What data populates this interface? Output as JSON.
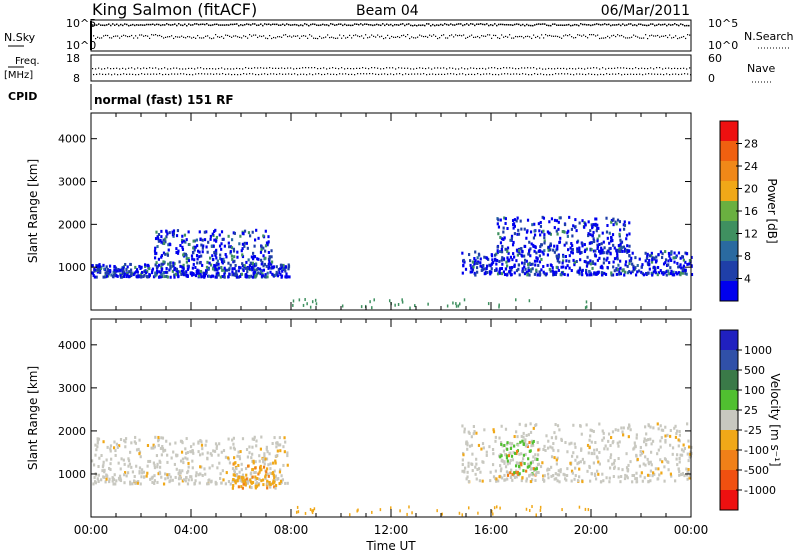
{
  "header": {
    "station": "King Salmon (fitACF)",
    "beam": "Beam 04",
    "date": "06/Mar/2011"
  },
  "top_panels": {
    "nsky_label": "N.Sky",
    "nsky_ticks": [
      "10^5",
      "10^0"
    ],
    "nsearch_label": "N.Search",
    "nsearch_ticks": [
      "10^5",
      "10^0"
    ],
    "freq_label_1": "Freq.",
    "freq_label_2": "[MHz]",
    "freq_ticks": [
      "18",
      "8"
    ],
    "nave_label": "Nave",
    "nave_ticks": [
      "60",
      "0"
    ],
    "cpid_label": "CPID",
    "cpid_text": "normal (fast) 151 RF"
  },
  "colors": {
    "power_scale": [
      "#0000ee",
      "#1f3fa8",
      "#2a6aa0",
      "#3f9060",
      "#6ab040",
      "#f0a818",
      "#f08818",
      "#f06010",
      "#ee1010"
    ],
    "velocity_scale": [
      "#2020c0",
      "#3050a8",
      "#3a7a48",
      "#50c030",
      "#c8c8c0",
      "#f0a818",
      "#f08018",
      "#f05010",
      "#ee1010"
    ]
  },
  "chart_data": [
    {
      "type": "heatmap",
      "name": "power",
      "ylabel": "Slant Range [km]",
      "ylim": [
        0,
        4600
      ],
      "yticks": [
        1000,
        2000,
        3000,
        4000
      ],
      "xlim": [
        0,
        24
      ],
      "colorbar_label": "Power [dB]",
      "colorbar_ticks": [
        "4",
        "8",
        "12",
        "16",
        "20",
        "24",
        "28"
      ],
      "features": [
        {
          "t_start": 0.0,
          "t_end": 7.9,
          "range_km": [
            800,
            1100
          ],
          "level": "low"
        },
        {
          "t_start": 2.5,
          "t_end": 7.2,
          "range_km": [
            1100,
            1900
          ],
          "level": "low"
        },
        {
          "t_start": 14.8,
          "t_end": 24.0,
          "range_km": [
            850,
            1400
          ],
          "level": "low"
        },
        {
          "t_start": 16.2,
          "t_end": 21.5,
          "range_km": [
            1400,
            2200
          ],
          "level": "low"
        }
      ]
    },
    {
      "type": "heatmap",
      "name": "velocity",
      "ylabel": "Slant Range [km]",
      "ylim": [
        0,
        4600
      ],
      "yticks": [
        1000,
        2000,
        3000,
        4000
      ],
      "xlim": [
        0,
        24
      ],
      "xticks": [
        "00:00",
        "04:00",
        "08:00",
        "12:00",
        "16:00",
        "20:00",
        "00:00"
      ],
      "xlabel": "Time UT",
      "colorbar_label": "Velocity [m s⁻¹]",
      "colorbar_ticks": [
        "1000",
        "500",
        "100",
        "25",
        "-25",
        "-100",
        "-500",
        "-1000"
      ],
      "features": [
        {
          "t_start": 0.0,
          "t_end": 7.9,
          "range_km": [
            800,
            1900
          ],
          "level": "ground"
        },
        {
          "t_start": 5.6,
          "t_end": 7.4,
          "range_km": [
            700,
            1300
          ],
          "level": "negative"
        },
        {
          "t_start": 14.8,
          "t_end": 24.0,
          "range_km": [
            850,
            2200
          ],
          "level": "ground"
        },
        {
          "t_start": 16.3,
          "t_end": 17.9,
          "range_km": [
            1000,
            1800
          ],
          "level": "mixed"
        }
      ]
    }
  ]
}
